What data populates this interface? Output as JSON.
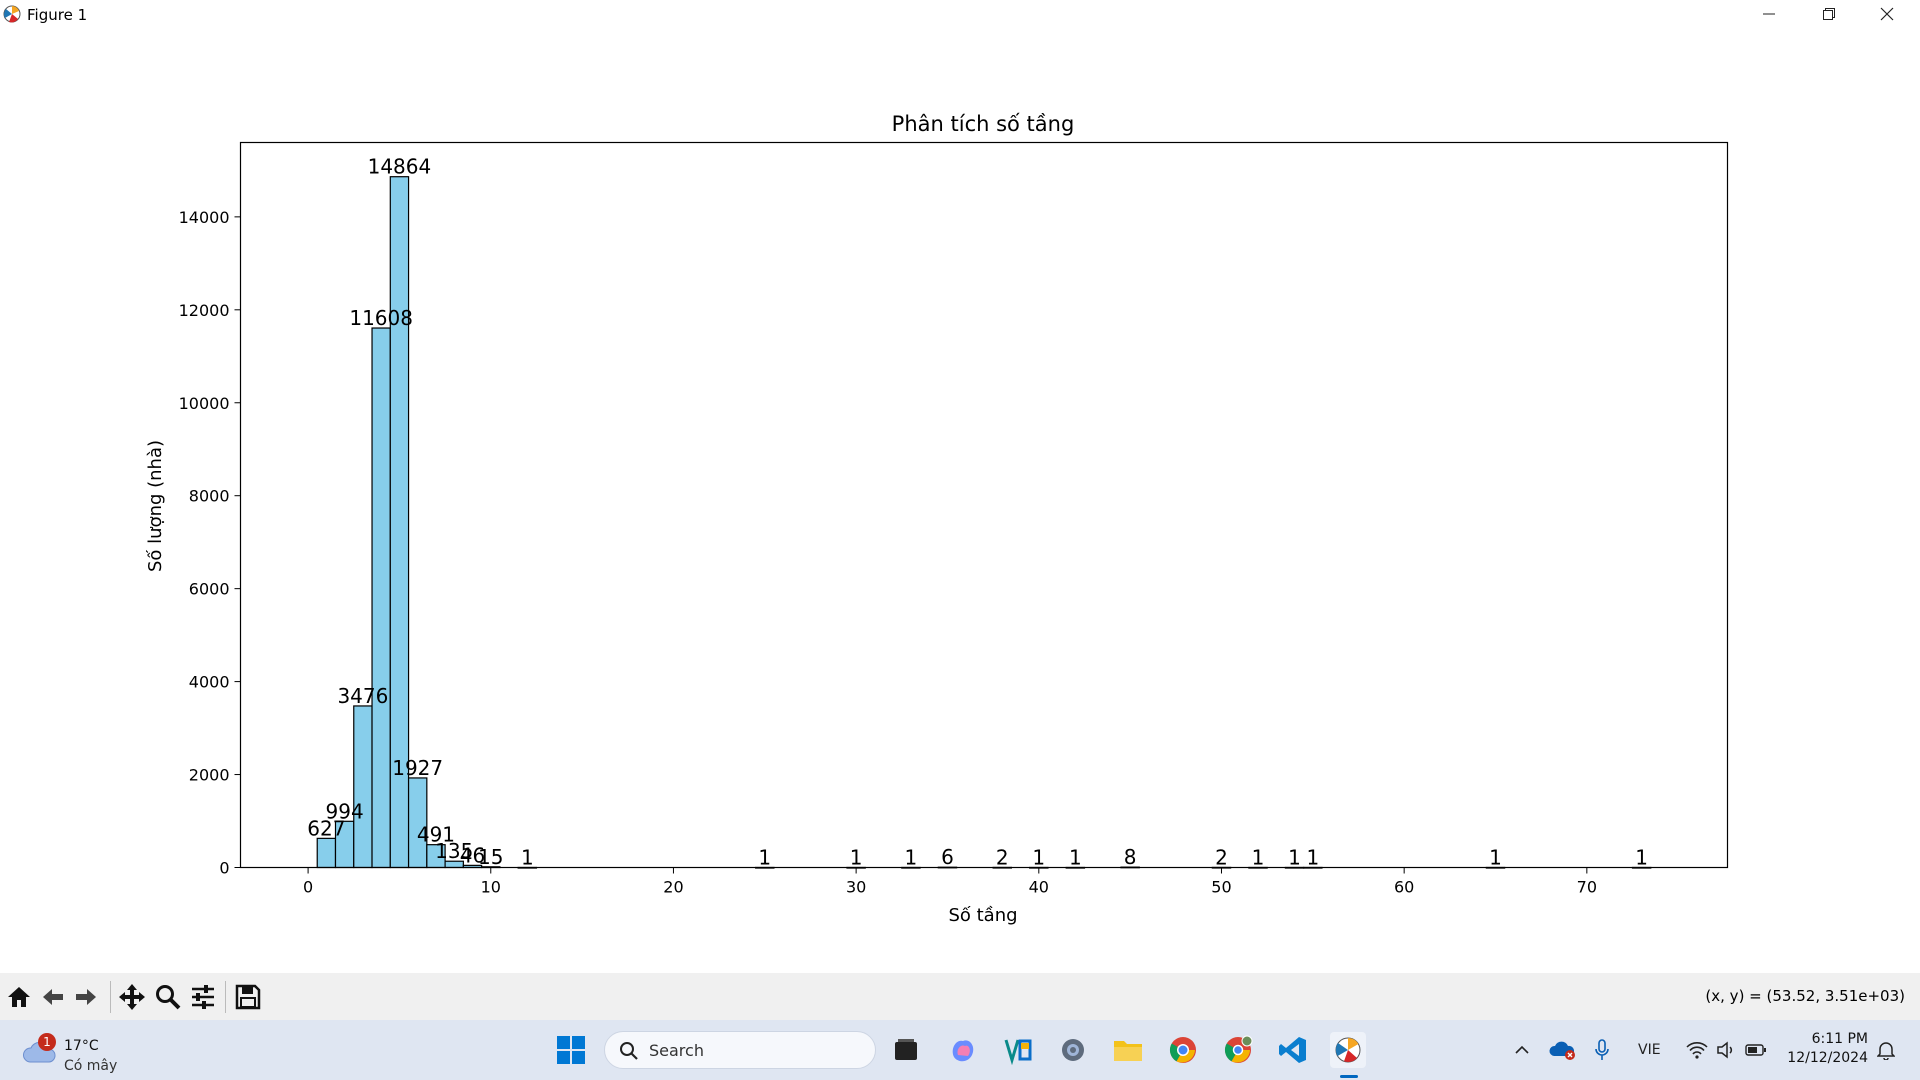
{
  "window": {
    "title": "Figure 1",
    "controls": [
      "minimize-icon",
      "restore-icon",
      "close-icon"
    ]
  },
  "chart_data": {
    "type": "bar",
    "title": "Phân tích số tầng",
    "xlabel": "Số tầng",
    "ylabel": "Số lượng (nhà)",
    "xlim": [
      -3.7,
      77.7
    ],
    "ylim": [
      0,
      15600
    ],
    "xticks": [
      0,
      10,
      20,
      30,
      40,
      50,
      60,
      70
    ],
    "yticks": [
      0,
      2000,
      4000,
      6000,
      8000,
      10000,
      12000,
      14000
    ],
    "bar_width": 1,
    "bar_color": "#87ceeb",
    "edge_color": "#000000",
    "grid": false,
    "bars": [
      {
        "x": 1,
        "value": 627,
        "label": "627"
      },
      {
        "x": 2,
        "value": 994,
        "label": "994"
      },
      {
        "x": 3,
        "value": 3476,
        "label": "3476"
      },
      {
        "x": 4,
        "value": 11608,
        "label": "11608"
      },
      {
        "x": 5,
        "value": 14864,
        "label": "14864"
      },
      {
        "x": 6,
        "value": 1927,
        "label": "1927"
      },
      {
        "x": 7,
        "value": 491,
        "label": "491"
      },
      {
        "x": 8,
        "value": 135,
        "label": "135"
      },
      {
        "x": 9,
        "value": 46,
        "label": "46"
      },
      {
        "x": 10,
        "value": 15,
        "label": "15"
      },
      {
        "x": 12,
        "value": 1,
        "label": "1"
      },
      {
        "x": 25,
        "value": 1,
        "label": "1"
      },
      {
        "x": 30,
        "value": 1,
        "label": "1"
      },
      {
        "x": 33,
        "value": 1,
        "label": "1"
      },
      {
        "x": 35,
        "value": 6,
        "label": "6"
      },
      {
        "x": 38,
        "value": 2,
        "label": "2"
      },
      {
        "x": 40,
        "value": 1,
        "label": "1"
      },
      {
        "x": 42,
        "value": 1,
        "label": "1"
      },
      {
        "x": 45,
        "value": 8,
        "label": "8"
      },
      {
        "x": 50,
        "value": 2,
        "label": "2"
      },
      {
        "x": 52,
        "value": 1,
        "label": "1"
      },
      {
        "x": 54,
        "value": 1,
        "label": "1"
      },
      {
        "x": 55,
        "value": 1,
        "label": "1"
      },
      {
        "x": 65,
        "value": 1,
        "label": "1"
      },
      {
        "x": 73,
        "value": 1,
        "label": "1"
      }
    ]
  },
  "toolbar": {
    "buttons": [
      "home-icon",
      "back-arrow-icon",
      "forward-arrow-icon",
      "pan-icon",
      "zoom-icon",
      "configure-subplots-icon",
      "save-icon"
    ],
    "coords": "(x, y) = (53.52, 3.51e+03)"
  },
  "taskbar": {
    "weather_temp": "17°C",
    "weather_cond": "Có mây",
    "weather_badge": "1",
    "search_placeholder": "Search",
    "language": "VIE",
    "time": "6:11 PM",
    "date": "12/12/2024",
    "colors": {
      "accent": "#0067c0",
      "bar_fill": "#87ceeb"
    }
  }
}
